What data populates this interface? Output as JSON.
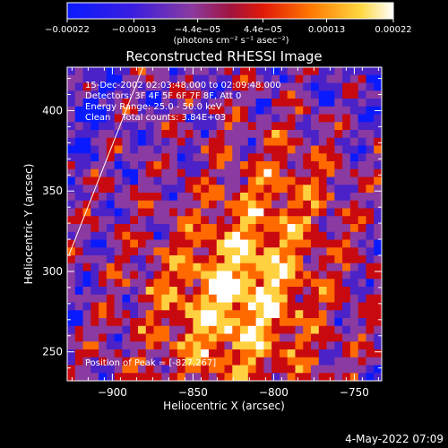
{
  "chart_data": {
    "type": "heatmap",
    "title": "Reconstructed RHESSI Image",
    "xlabel": "Heliocentric X (arcsec)",
    "ylabel": "Heliocentric Y (arcsec)",
    "xlim": [
      -928,
      -733
    ],
    "ylim": [
      232,
      427
    ],
    "x_ticks": [
      -900,
      -850,
      -800,
      -750
    ],
    "y_ticks": [
      250,
      300,
      350,
      400
    ],
    "x_tick_labels": [
      "−900",
      "−850",
      "−800",
      "−750"
    ],
    "y_tick_labels": [
      "250",
      "300",
      "350",
      "400"
    ],
    "grid": false,
    "colorbar": {
      "ticks": [
        -0.00022,
        -0.00013,
        -4.4e-05,
        4.4e-05,
        0.00013,
        0.00022
      ],
      "tick_labels": [
        "−0.00022",
        "−0.00013",
        "−4.4e−05",
        "4.4e−05",
        "0.00013",
        "0.00022"
      ],
      "units": "(photons cm⁻² s⁻¹ asec⁻²)",
      "range": [
        -0.00022,
        0.00022
      ],
      "colors": [
        "#0a1aff",
        "#4a22c8",
        "#8a3aa0",
        "#c80a10",
        "#ff6a00",
        "#ffd040",
        "#ffffff"
      ]
    },
    "annotations": {
      "time_range": "15-Dec-2002 02:03:48.000 to 02:09:48.000",
      "detectors": "Detectors: 3F 4F 5F 6F 7F 8F, Att 0",
      "energy_range": "Energy Range: 25.0 - 50.0 keV",
      "clean_counts": "Clean    Total counts: 3.84E+03",
      "peak_position": "Position of Peak = [-827,267]"
    },
    "peak": {
      "x": -827,
      "y": 267
    },
    "limb_line": [
      [
        -927,
        310
      ],
      [
        -881,
        427
      ]
    ],
    "grid_cells": 40
  },
  "footer": {
    "date_stamp": "4-May-2022 07:09"
  }
}
